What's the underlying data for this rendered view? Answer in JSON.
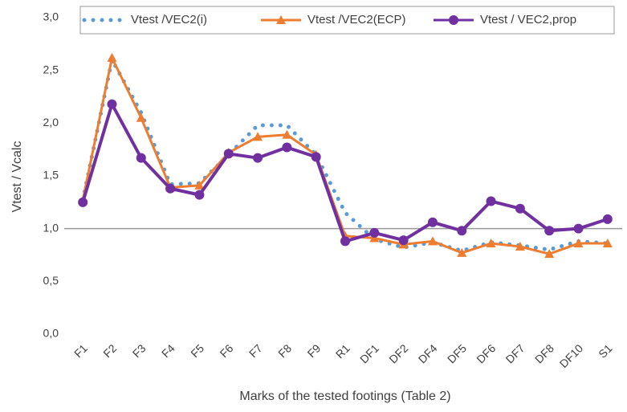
{
  "chart_data": {
    "type": "line",
    "x_label": "Marks of the tested footings  (Table 2)",
    "y_label": "Vtest / Vcalc",
    "categories": [
      "F1",
      "F2",
      "F3",
      "F4",
      "F5",
      "F6",
      "F7",
      "F8",
      "F9",
      "R1",
      "DF1",
      "DF2",
      "DF4",
      "DF5",
      "DF6",
      "DF7",
      "DF8",
      "DF10",
      "S1"
    ],
    "series": [
      {
        "name": "Vtest /VEC2(i)",
        "color": "#5b9bd5",
        "style": "dotted",
        "values": [
          1.27,
          2.6,
          2.1,
          1.42,
          1.43,
          1.7,
          1.98,
          1.98,
          1.7,
          1.15,
          0.9,
          0.82,
          0.87,
          0.79,
          0.87,
          0.84,
          0.8,
          0.88,
          0.86
        ]
      },
      {
        "name": "Vtest /VEC2(ECP)",
        "color": "#ed7d31",
        "marker": "triangle",
        "values": [
          1.27,
          2.62,
          2.05,
          1.39,
          1.41,
          1.72,
          1.87,
          1.89,
          1.7,
          0.93,
          0.91,
          0.85,
          0.88,
          0.77,
          0.86,
          0.83,
          0.76,
          0.86,
          0.86
        ]
      },
      {
        "name": "Vtest / VEC2,prop",
        "color": "#7030a0",
        "marker": "circle",
        "values": [
          1.25,
          2.18,
          1.67,
          1.38,
          1.32,
          1.71,
          1.67,
          1.77,
          1.68,
          0.88,
          0.96,
          0.89,
          1.06,
          0.98,
          1.26,
          1.19,
          0.98,
          1.0,
          1.09
        ]
      }
    ],
    "reference_line": {
      "value": 1,
      "color": "#999999"
    },
    "ylim": [
      0,
      3
    ],
    "yticks": [
      {
        "value": 0,
        "label": "0,0"
      },
      {
        "value": 0.5,
        "label": "0,5"
      },
      {
        "value": 1,
        "label": "1,0"
      },
      {
        "value": 1.5,
        "label": "1,5"
      },
      {
        "value": 2,
        "label": "2,0"
      },
      {
        "value": 2.5,
        "label": "2,5"
      },
      {
        "value": 3,
        "label": "3,0"
      }
    ],
    "grid": false
  }
}
